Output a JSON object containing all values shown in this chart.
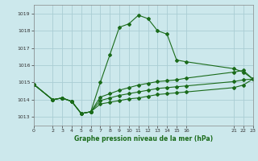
{
  "background_color": "#cce8ec",
  "grid_color": "#aacdd4",
  "line_color": "#1a6b1a",
  "title": "Graphe pression niveau de la mer (hPa)",
  "xlim": [
    0,
    23
  ],
  "ylim": [
    1012.5,
    1019.5
  ],
  "yticks": [
    1013,
    1014,
    1015,
    1016,
    1017,
    1018,
    1019
  ],
  "xtick_labels": [
    "0",
    "2",
    "3",
    "4",
    "5",
    "6",
    "7",
    "8",
    "9",
    "10",
    "11",
    "12",
    "13",
    "14",
    "15",
    "16",
    "21",
    "22",
    "23"
  ],
  "xtick_positions": [
    0,
    2,
    3,
    4,
    5,
    6,
    7,
    8,
    9,
    10,
    11,
    12,
    13,
    14,
    15,
    16,
    21,
    22,
    23
  ],
  "series": [
    {
      "x": [
        0,
        2,
        3,
        4,
        5,
        6,
        7,
        8,
        9,
        10,
        11,
        12,
        13,
        14,
        15,
        16,
        21,
        22,
        23
      ],
      "y": [
        1014.9,
        1014.0,
        1014.1,
        1013.9,
        1013.2,
        1013.3,
        1015.0,
        1016.6,
        1018.2,
        1018.4,
        1018.9,
        1018.7,
        1018.0,
        1017.8,
        1016.3,
        1016.2,
        1015.8,
        1015.6,
        1015.2
      ]
    },
    {
      "x": [
        0,
        2,
        3,
        4,
        5,
        6,
        7,
        8,
        9,
        10,
        11,
        12,
        13,
        14,
        15,
        16,
        21,
        22,
        23
      ],
      "y": [
        1014.9,
        1014.0,
        1014.1,
        1013.9,
        1013.2,
        1013.3,
        1014.15,
        1014.35,
        1014.55,
        1014.7,
        1014.85,
        1014.95,
        1015.05,
        1015.1,
        1015.15,
        1015.25,
        1015.6,
        1015.7,
        1015.2
      ]
    },
    {
      "x": [
        0,
        2,
        3,
        4,
        5,
        6,
        7,
        8,
        9,
        10,
        11,
        12,
        13,
        14,
        15,
        16,
        21,
        22,
        23
      ],
      "y": [
        1014.9,
        1014.0,
        1014.1,
        1013.9,
        1013.2,
        1013.3,
        1013.95,
        1014.1,
        1014.25,
        1014.35,
        1014.45,
        1014.55,
        1014.65,
        1014.7,
        1014.75,
        1014.8,
        1015.05,
        1015.15,
        1015.2
      ]
    },
    {
      "x": [
        0,
        2,
        3,
        4,
        5,
        6,
        7,
        8,
        9,
        10,
        11,
        12,
        13,
        14,
        15,
        16,
        21,
        22,
        23
      ],
      "y": [
        1014.9,
        1014.0,
        1014.1,
        1013.9,
        1013.2,
        1013.3,
        1013.75,
        1013.85,
        1013.95,
        1014.05,
        1014.1,
        1014.2,
        1014.3,
        1014.35,
        1014.4,
        1014.45,
        1014.7,
        1014.85,
        1015.2
      ]
    }
  ]
}
